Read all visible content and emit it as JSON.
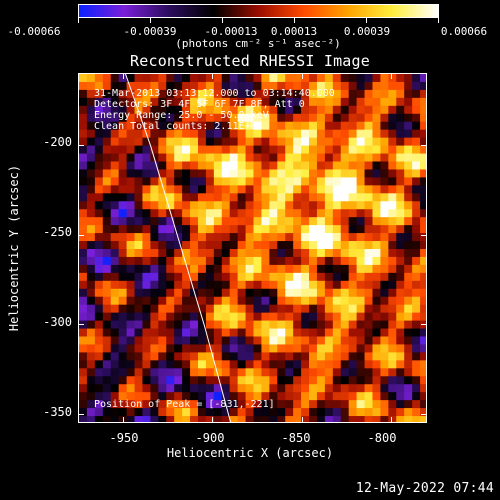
{
  "colorbar": {
    "tick_labels": [
      "-0.00066",
      "-0.00039",
      "-0.00013",
      "0.00013",
      "0.00039",
      "0.00066"
    ],
    "units": "(photons cm⁻² s⁻¹ asec⁻²)"
  },
  "chart_data": {
    "type": "heatmap",
    "title": "Reconstructed RHESSI Image",
    "xlabel": "Heliocentric X (arcsec)",
    "ylabel": "Heliocentric Y (arcsec)",
    "xlim": [
      -975,
      -780
    ],
    "ylim": [
      -355,
      -160
    ],
    "x_ticks": [
      "-950",
      "-900",
      "-850",
      "-800"
    ],
    "y_ticks": [
      "-200",
      "-250",
      "-300",
      "-350"
    ],
    "value_range": [
      -0.00066,
      0.00066
    ],
    "colormap": [
      "#0b22ff",
      "#7a1fd8",
      "#2c0d5e",
      "#000000",
      "#9a0d00",
      "#ff4a00",
      "#ffa400",
      "#ffef40",
      "#ffffff"
    ],
    "limb_curve": [
      [
        -949,
        -160
      ],
      [
        -935,
        -200
      ],
      [
        -920,
        -250
      ],
      [
        -905,
        -300
      ],
      [
        -890,
        -355
      ]
    ],
    "peak": [
      -831,
      -221
    ],
    "annotations": [
      "31-Mar-2013 03:13:12.000 to 03:14:40.000",
      "Detectors: 3F 4F 5F 6F 7F 8F, Att 0",
      "Energy Range: 25.0 - 50.0 keV",
      "Clean    Total counts: 2.11E+03",
      "Position of Peak = [-831,-221]"
    ]
  },
  "footer_timestamp": "12-May-2022 07:44"
}
